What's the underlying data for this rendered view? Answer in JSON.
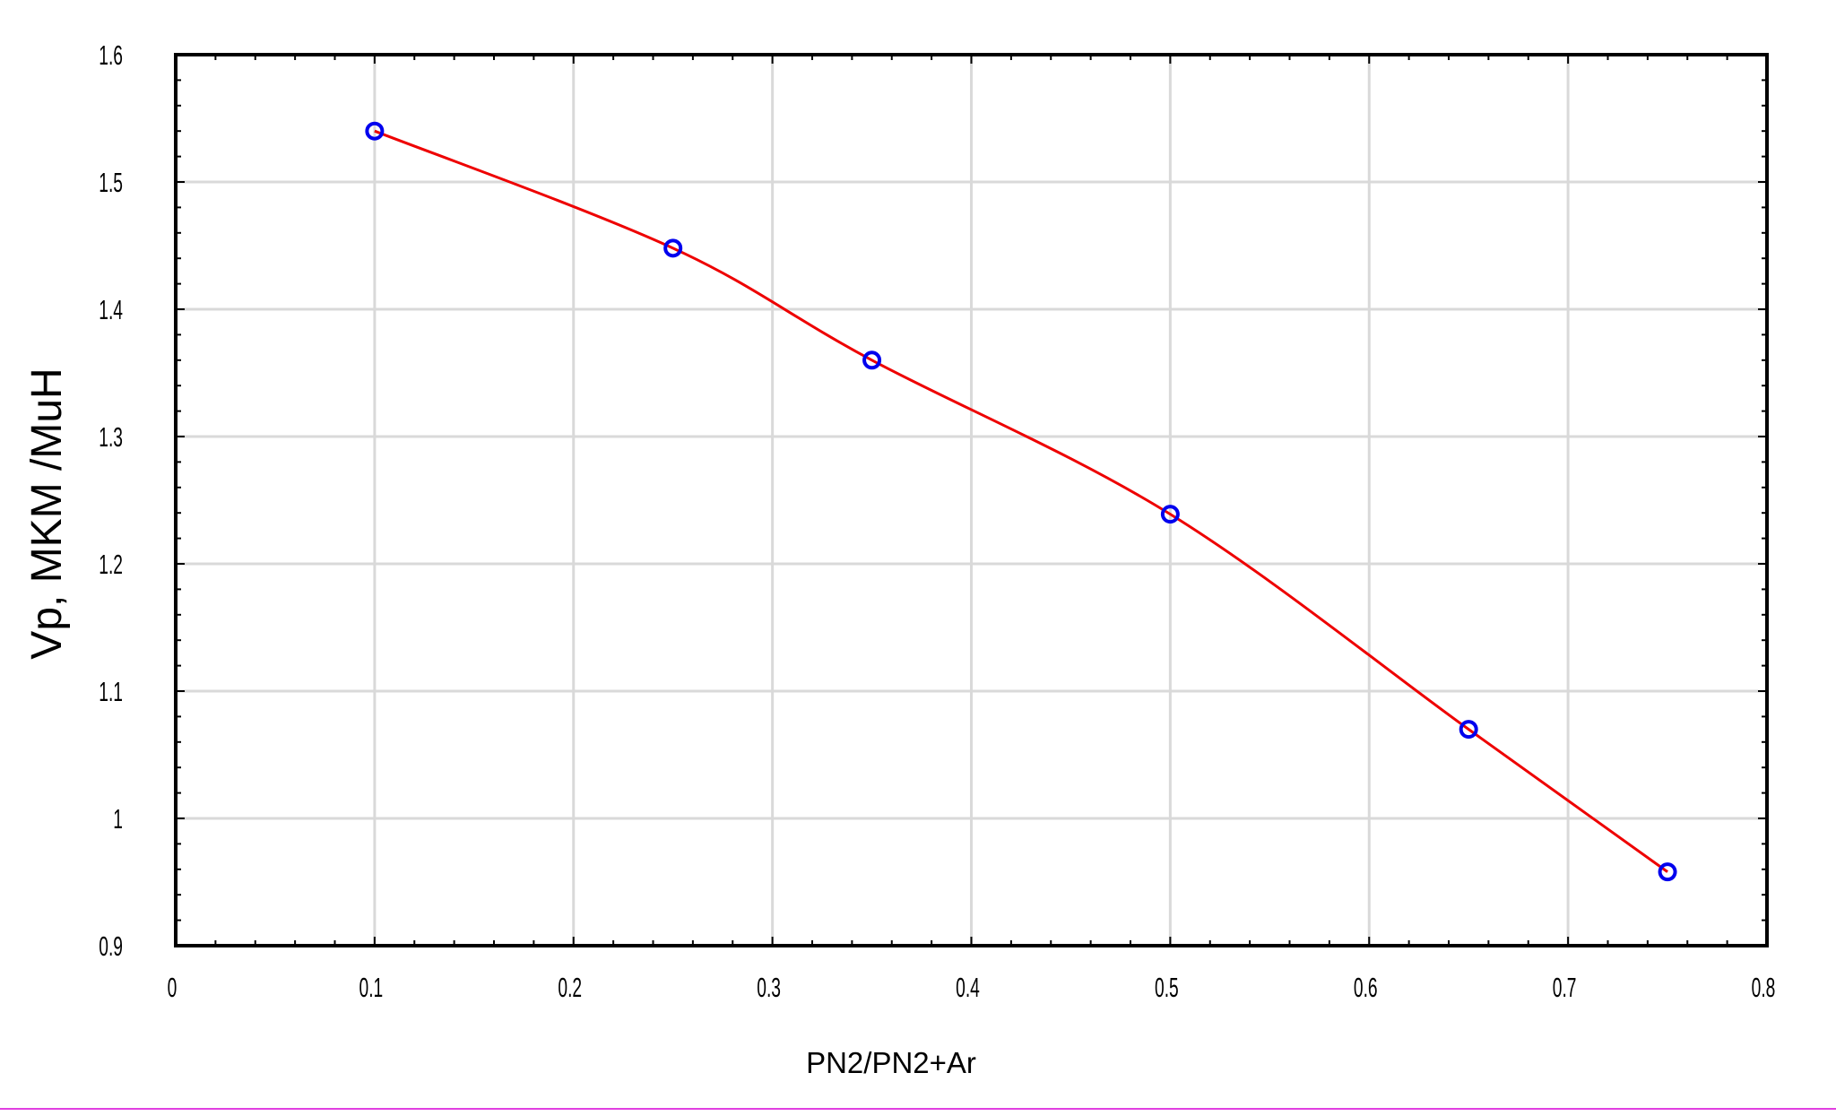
{
  "chart_data": {
    "type": "line",
    "title": "",
    "xlabel": "PN2/PN2+Ar",
    "ylabel": "Vp, MKM /MuH",
    "xlim": [
      0,
      0.8
    ],
    "ylim": [
      0.9,
      1.6
    ],
    "grid": true,
    "x_ticks": [
      0,
      0.1,
      0.2,
      0.3,
      0.4,
      0.5,
      0.6,
      0.7,
      0.8
    ],
    "x_tick_labels": [
      "0",
      "0.1",
      "0.2",
      "0.3",
      "0.4",
      "0.5",
      "0.6",
      "0.7",
      "0.8"
    ],
    "y_ticks": [
      0.9,
      1.0,
      1.1,
      1.2,
      1.3,
      1.4,
      1.5,
      1.6
    ],
    "y_tick_labels": [
      "0.9",
      "1",
      "1.1",
      "1.2",
      "1.3",
      "1.4",
      "1.5",
      "1.6"
    ],
    "series": [
      {
        "x": [
          0.1,
          0.25,
          0.35,
          0.5,
          0.65,
          0.75
        ],
        "y": [
          1.54,
          1.448,
          1.36,
          1.239,
          1.07,
          0.958
        ],
        "marker": "circle",
        "marker_color": "#0000ee",
        "line": "smooth",
        "line_color": "#ee0000"
      }
    ]
  }
}
